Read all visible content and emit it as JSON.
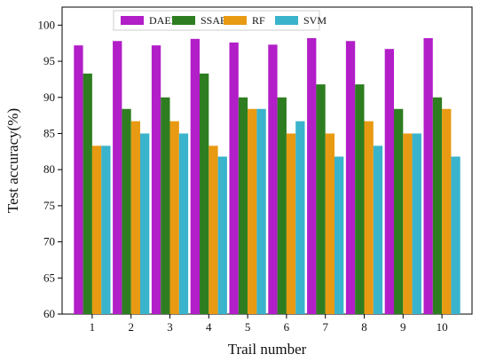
{
  "chart_data": {
    "type": "bar",
    "title": "",
    "xlabel": "Trail number",
    "ylabel": "Test accuracy(%)",
    "ylim": [
      60,
      102.5
    ],
    "yticks": [
      60,
      65,
      70,
      75,
      80,
      85,
      90,
      95,
      100
    ],
    "categories": [
      "1",
      "2",
      "3",
      "4",
      "5",
      "6",
      "7",
      "8",
      "9",
      "10"
    ],
    "legend_position": "top-center",
    "grid": false,
    "series": [
      {
        "name": "DAEN",
        "color": "#b21ec8",
        "values": [
          97.2,
          97.8,
          97.2,
          98.1,
          97.6,
          97.3,
          98.2,
          97.8,
          96.7,
          98.2
        ]
      },
      {
        "name": "SSAE",
        "color": "#2e7d21",
        "values": [
          93.3,
          88.4,
          90.0,
          93.3,
          90.0,
          90.0,
          91.8,
          91.8,
          88.4,
          90.0
        ]
      },
      {
        "name": "RF",
        "color": "#e89a12",
        "values": [
          83.3,
          86.7,
          86.7,
          83.3,
          88.4,
          85.0,
          85.0,
          86.7,
          85.0,
          88.4
        ]
      },
      {
        "name": "SVM",
        "color": "#3ab3cc",
        "values": [
          83.3,
          85.0,
          85.0,
          81.8,
          88.4,
          86.7,
          81.8,
          83.3,
          85.0,
          81.8
        ]
      }
    ]
  }
}
